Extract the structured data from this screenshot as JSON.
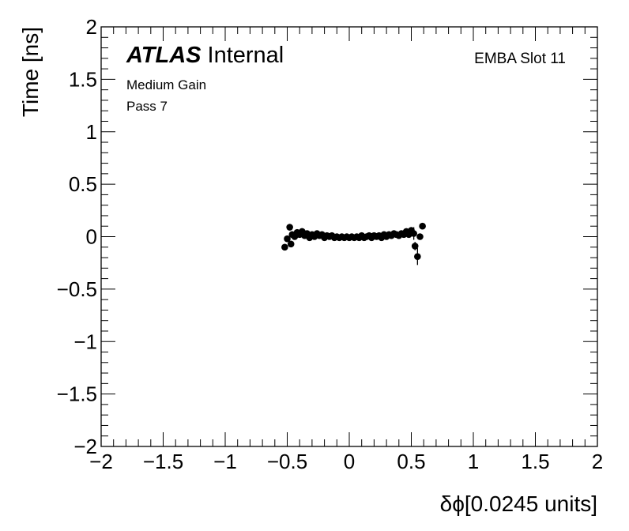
{
  "labels": {
    "atlas": "ATLAS",
    "internal": "Internal",
    "gain": "Medium Gain",
    "pass": "Pass 7",
    "module": "EMBA Slot 11"
  },
  "chart_data": {
    "type": "scatter",
    "xlabel": "δϕ[0.0245 units]",
    "ylabel": "Time [ns]",
    "xlim": [
      -2,
      2
    ],
    "ylim": [
      -2,
      2
    ],
    "x_ticks": [
      "−2",
      "−1.5",
      "−1",
      "−0.5",
      "0",
      "0.5",
      "1",
      "1.5",
      "2"
    ],
    "y_ticks": [
      "−2",
      "−1.5",
      "−1",
      "−0.5",
      "0",
      "0.5",
      "1",
      "1.5",
      "2"
    ],
    "grid": false,
    "marker_color": "#000000",
    "points": [
      {
        "x": -0.52,
        "y": -0.1,
        "err": 0.02
      },
      {
        "x": -0.5,
        "y": -0.02,
        "err": 0.02
      },
      {
        "x": -0.48,
        "y": 0.09,
        "err": 0.02
      },
      {
        "x": -0.47,
        "y": -0.07,
        "err": 0.02
      },
      {
        "x": -0.46,
        "y": 0.02,
        "err": 0.02
      },
      {
        "x": -0.44,
        "y": 0.0,
        "err": 0.01
      },
      {
        "x": -0.42,
        "y": 0.04,
        "err": 0.01
      },
      {
        "x": -0.4,
        "y": 0.02,
        "err": 0.01
      },
      {
        "x": -0.38,
        "y": 0.05,
        "err": 0.01
      },
      {
        "x": -0.36,
        "y": 0.01,
        "err": 0.01
      },
      {
        "x": -0.34,
        "y": 0.03,
        "err": 0.01
      },
      {
        "x": -0.32,
        "y": -0.01,
        "err": 0.01
      },
      {
        "x": -0.3,
        "y": 0.02,
        "err": 0.01
      },
      {
        "x": -0.28,
        "y": 0.0,
        "err": 0.01
      },
      {
        "x": -0.26,
        "y": 0.03,
        "err": 0.01
      },
      {
        "x": -0.24,
        "y": 0.01,
        "err": 0.01
      },
      {
        "x": -0.22,
        "y": 0.02,
        "err": 0.01
      },
      {
        "x": -0.2,
        "y": -0.01,
        "err": 0.01
      },
      {
        "x": -0.18,
        "y": 0.01,
        "err": 0.01
      },
      {
        "x": -0.16,
        "y": 0.0,
        "err": 0.01
      },
      {
        "x": -0.14,
        "y": 0.01,
        "err": 0.01
      },
      {
        "x": -0.12,
        "y": -0.01,
        "err": 0.01
      },
      {
        "x": -0.1,
        "y": 0.0,
        "err": 0.01
      },
      {
        "x": -0.08,
        "y": -0.01,
        "err": 0.01
      },
      {
        "x": -0.06,
        "y": 0.0,
        "err": 0.01
      },
      {
        "x": -0.04,
        "y": -0.01,
        "err": 0.01
      },
      {
        "x": -0.02,
        "y": 0.0,
        "err": 0.01
      },
      {
        "x": 0.0,
        "y": -0.01,
        "err": 0.01
      },
      {
        "x": 0.02,
        "y": 0.0,
        "err": 0.01
      },
      {
        "x": 0.04,
        "y": -0.01,
        "err": 0.01
      },
      {
        "x": 0.06,
        "y": 0.0,
        "err": 0.01
      },
      {
        "x": 0.08,
        "y": -0.01,
        "err": 0.01
      },
      {
        "x": 0.1,
        "y": 0.01,
        "err": 0.01
      },
      {
        "x": 0.12,
        "y": -0.01,
        "err": 0.01
      },
      {
        "x": 0.14,
        "y": 0.0,
        "err": 0.01
      },
      {
        "x": 0.16,
        "y": 0.01,
        "err": 0.01
      },
      {
        "x": 0.18,
        "y": -0.01,
        "err": 0.01
      },
      {
        "x": 0.2,
        "y": 0.01,
        "err": 0.01
      },
      {
        "x": 0.22,
        "y": 0.0,
        "err": 0.01
      },
      {
        "x": 0.24,
        "y": 0.01,
        "err": 0.01
      },
      {
        "x": 0.26,
        "y": -0.01,
        "err": 0.01
      },
      {
        "x": 0.28,
        "y": 0.02,
        "err": 0.01
      },
      {
        "x": 0.3,
        "y": 0.0,
        "err": 0.01
      },
      {
        "x": 0.32,
        "y": 0.02,
        "err": 0.01
      },
      {
        "x": 0.34,
        "y": 0.01,
        "err": 0.01
      },
      {
        "x": 0.36,
        "y": 0.03,
        "err": 0.01
      },
      {
        "x": 0.38,
        "y": 0.02,
        "err": 0.01
      },
      {
        "x": 0.4,
        "y": 0.01,
        "err": 0.01
      },
      {
        "x": 0.42,
        "y": 0.03,
        "err": 0.01
      },
      {
        "x": 0.44,
        "y": 0.02,
        "err": 0.01
      },
      {
        "x": 0.46,
        "y": 0.05,
        "err": 0.02
      },
      {
        "x": 0.48,
        "y": 0.02,
        "err": 0.02
      },
      {
        "x": 0.5,
        "y": 0.06,
        "err": 0.03
      },
      {
        "x": 0.52,
        "y": 0.03,
        "err": 0.06
      },
      {
        "x": 0.53,
        "y": -0.09,
        "err": 0.04
      },
      {
        "x": 0.55,
        "y": -0.19,
        "err": 0.08
      },
      {
        "x": 0.57,
        "y": 0.0,
        "err": 0.02
      },
      {
        "x": 0.59,
        "y": 0.1,
        "err": 0.02
      }
    ]
  }
}
